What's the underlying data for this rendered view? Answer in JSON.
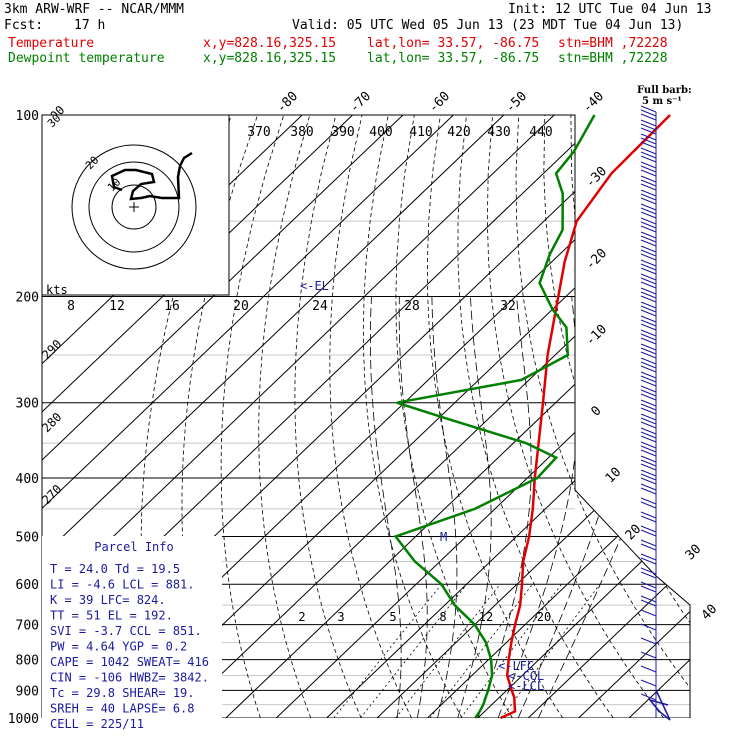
{
  "header": {
    "model": "3km ARW-WRF -- NCAR/MMM",
    "init": "Init: 12 UTC Tue 04 Jun 13",
    "fcst_label": "Fcst:",
    "fcst_hours": "17 h",
    "valid": "Valid: 05 UTC Wed 05 Jun 13 (23 MDT Tue 04 Jun 13)",
    "temp_label": "Temperature",
    "dew_label": "Dewpoint temperature",
    "xy": "x,y=828.16,325.15",
    "latlon": "lat,lon= 33.57, -86.75",
    "stn": "stn=BHM ,72228"
  },
  "wind_legend": {
    "line1": "Full barb:",
    "line2": "5 m s⁻¹"
  },
  "chart_data": {
    "type": "line",
    "title": "",
    "colors": {
      "temperature": "#e00000",
      "dewpoint": "#008000"
    },
    "pressure_axis": {
      "ticks": [
        "100",
        "200",
        "300",
        "400",
        "500",
        "600",
        "700",
        "800",
        "900",
        "1000"
      ],
      "scale": "log"
    },
    "isotherm_labels_top": [
      "-80",
      "-70",
      "-60",
      "-50",
      "-40"
    ],
    "isotherm_labels_right": [
      "-30",
      "-20",
      "-10",
      "0",
      "10",
      "20",
      "30",
      "40"
    ],
    "theta_labels_top": [
      "370",
      "380",
      "390",
      "400",
      "410",
      "420",
      "430",
      "440"
    ],
    "theta_labels_left": [
      "300",
      "290",
      "280",
      "270"
    ],
    "hodograph": {
      "axis_label": "kts",
      "ticks": [
        "8",
        "12",
        "16",
        "20",
        "24",
        "28",
        "32"
      ],
      "ring_labels": [
        "30",
        "20",
        "10"
      ]
    },
    "mixing_ratio_labels": [
      "2",
      "3",
      "5",
      "8",
      "12",
      "20"
    ],
    "level_labels": {
      "el": "<-EL",
      "lfc": "<-LFC",
      "ccl": "<-CCL",
      "lcl": "<-LCL",
      "m": "M"
    },
    "series": [
      {
        "name": "Temperature",
        "points": [
          [
            1000,
            24.5
          ],
          [
            975,
            26.0
          ],
          [
            950,
            24.5
          ],
          [
            925,
            23.0
          ],
          [
            900,
            21.0
          ],
          [
            850,
            17.0
          ],
          [
            800,
            14.0
          ],
          [
            750,
            11.0
          ],
          [
            700,
            8.0
          ],
          [
            650,
            5.0
          ],
          [
            600,
            1.0
          ],
          [
            550,
            -3.5
          ],
          [
            500,
            -7.5
          ],
          [
            450,
            -12.5
          ],
          [
            400,
            -18.5
          ],
          [
            350,
            -25.0
          ],
          [
            300,
            -32.5
          ],
          [
            250,
            -41.5
          ],
          [
            200,
            -51.5
          ],
          [
            175,
            -57.5
          ],
          [
            150,
            -63.5
          ],
          [
            125,
            -66.5
          ],
          [
            100,
            -67.0
          ]
        ]
      },
      {
        "name": "Dewpoint temperature",
        "points": [
          [
            1000,
            19.5
          ],
          [
            975,
            19.0
          ],
          [
            950,
            18.3
          ],
          [
            925,
            17.3
          ],
          [
            900,
            16.3
          ],
          [
            850,
            14.0
          ],
          [
            800,
            10.5
          ],
          [
            750,
            6.0
          ],
          [
            700,
            0.0
          ],
          [
            650,
            -8.0
          ],
          [
            600,
            -15.0
          ],
          [
            550,
            -25.0
          ],
          [
            500,
            -34.0
          ],
          [
            450,
            -24.0
          ],
          [
            400,
            -18.0
          ],
          [
            370,
            -18.5
          ],
          [
            350,
            -27.5
          ],
          [
            320,
            -47.5
          ],
          [
            300,
            -61.5
          ],
          [
            275,
            -41.5
          ],
          [
            250,
            -37.5
          ],
          [
            225,
            -43.5
          ],
          [
            210,
            -50.0
          ],
          [
            190,
            -58.0
          ],
          [
            170,
            -62.0
          ],
          [
            155,
            -64.5
          ],
          [
            135,
            -72.0
          ],
          [
            125,
            -77.5
          ],
          [
            115,
            -78.5
          ],
          [
            100,
            -82.0
          ]
        ]
      }
    ]
  },
  "parcel_info": {
    "title": "Parcel Info",
    "rows": [
      "T   =   24.0  Td =  19.5",
      "LI  =   -4.6  LCL =  881.",
      "K   =     39  LFC=  824.",
      "TT  =     51  EL  =  192.",
      "SVI =   -3.7  CCL =  851.",
      "PW  =   4.64  YGP =   0.2",
      "CAPE =  1042  SWEAT=  416",
      "CIN  =  -106  HWBZ= 3842.",
      "Tc  =   29.8  SHEAR=  19.",
      "SREH =    40  LAPSE=  6.8",
      "CELL = 225/11"
    ]
  }
}
